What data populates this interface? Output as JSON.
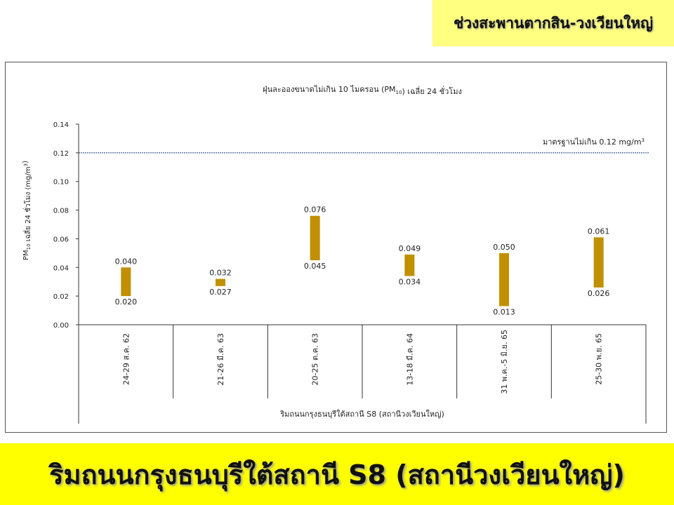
{
  "header_tag": "ช่วงสะพานตากสิน-วงเวียนใหญ่",
  "banner": "ริมถนนกรุงธนบุรีใต้สถานี S8 (สถานีวงเวียนใหญ่)",
  "colors": {
    "bar": "#C09000",
    "standard_line": "#1F3A7A",
    "tag_bg": "#FFFF80",
    "banner_bg": "#FFFF00"
  },
  "chart_data": {
    "type": "bar",
    "subtype": "floating-range",
    "title": "ฝุ่นละอองขนาดไม่เกิน 10 ไมครอน (PM10) เฉลี่ย 24 ชั่วโมง",
    "ylabel": "PM10 เฉลี่ย 24 ชั่วโมง (mg/m3)",
    "xlabel": "ริมถนนกรุงธนบุรีใต้สถานี S8 (สถานีวงเวียนใหญ่)",
    "ylim": [
      0,
      0.14
    ],
    "yticks": [
      "0.00",
      "0.02",
      "0.04",
      "0.06",
      "0.08",
      "0.10",
      "0.12",
      "0.14"
    ],
    "categories": [
      "24-29 ส.ค. 62",
      "21-26 มี.ค. 63",
      "20-25 ต.ค. 63",
      "13-18 มี.ค. 64",
      "31 พ.ค.-5 มิ.ย. 65",
      "25-30 พ.ย. 65"
    ],
    "min_values": [
      0.02,
      0.027,
      0.045,
      0.034,
      0.013,
      0.026
    ],
    "max_values": [
      0.04,
      0.032,
      0.076,
      0.049,
      0.05,
      0.061
    ],
    "min_labels": [
      "0.020",
      "0.027",
      "0.045",
      "0.034",
      "0.013",
      "0.026"
    ],
    "max_labels": [
      "0.040",
      "0.032",
      "0.076",
      "0.049",
      "0.050",
      "0.061"
    ],
    "standard": {
      "value": 0.12,
      "label": "มาตรฐานไม่เกิน 0.12 mg/m3"
    },
    "grid": false,
    "legend": "none"
  }
}
